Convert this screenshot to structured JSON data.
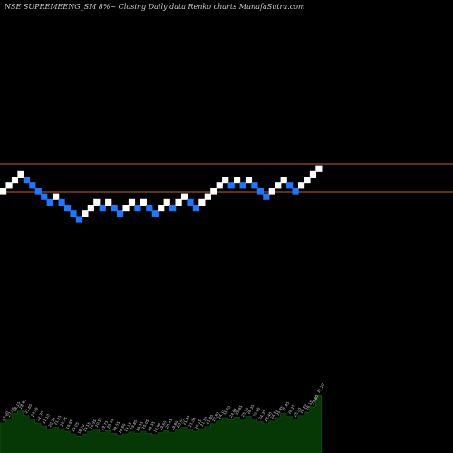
{
  "chart_data": {
    "type": "renko",
    "title": "NSE SUPREMEENG_SM 8%~   Closing Daily data  Renko  charts MunafaSutra.com",
    "colors": {
      "up": "#ffffff",
      "down": "#1e78ff",
      "background": "#000000",
      "ref_line": "#c0603a",
      "volume": "#063806"
    },
    "reference_lines": [
      {
        "name": "upper",
        "value": 1.0
      },
      {
        "name": "lower",
        "value": -4.0
      }
    ],
    "bricks": [
      {
        "direction": "up",
        "level": -2
      },
      {
        "direction": "up",
        "level": -1
      },
      {
        "direction": "up",
        "level": 0
      },
      {
        "direction": "up",
        "level": 1
      },
      {
        "direction": "down",
        "level": 0
      },
      {
        "direction": "down",
        "level": -1
      },
      {
        "direction": "down",
        "level": -2
      },
      {
        "direction": "down",
        "level": -3
      },
      {
        "direction": "down",
        "level": -4
      },
      {
        "direction": "up",
        "level": -3
      },
      {
        "direction": "down",
        "level": -4
      },
      {
        "direction": "down",
        "level": -5
      },
      {
        "direction": "down",
        "level": -6
      },
      {
        "direction": "down",
        "level": -7
      },
      {
        "direction": "up",
        "level": -6
      },
      {
        "direction": "up",
        "level": -5
      },
      {
        "direction": "up",
        "level": -4
      },
      {
        "direction": "down",
        "level": -5
      },
      {
        "direction": "up",
        "level": -4
      },
      {
        "direction": "down",
        "level": -5
      },
      {
        "direction": "down",
        "level": -6
      },
      {
        "direction": "up",
        "level": -5
      },
      {
        "direction": "up",
        "level": -4
      },
      {
        "direction": "down",
        "level": -5
      },
      {
        "direction": "up",
        "level": -4
      },
      {
        "direction": "down",
        "level": -5
      },
      {
        "direction": "down",
        "level": -6
      },
      {
        "direction": "up",
        "level": -5
      },
      {
        "direction": "up",
        "level": -4
      },
      {
        "direction": "down",
        "level": -5
      },
      {
        "direction": "up",
        "level": -4
      },
      {
        "direction": "up",
        "level": -3
      },
      {
        "direction": "down",
        "level": -4
      },
      {
        "direction": "down",
        "level": -5
      },
      {
        "direction": "up",
        "level": -4
      },
      {
        "direction": "up",
        "level": -3
      },
      {
        "direction": "up",
        "level": -2
      },
      {
        "direction": "up",
        "level": -1
      },
      {
        "direction": "up",
        "level": 0
      },
      {
        "direction": "down",
        "level": -1
      },
      {
        "direction": "up",
        "level": 0
      },
      {
        "direction": "down",
        "level": -1
      },
      {
        "direction": "up",
        "level": 0
      },
      {
        "direction": "down",
        "level": -1
      },
      {
        "direction": "down",
        "level": -2
      },
      {
        "direction": "down",
        "level": -3
      },
      {
        "direction": "up",
        "level": -2
      },
      {
        "direction": "up",
        "level": -1
      },
      {
        "direction": "up",
        "level": 0
      },
      {
        "direction": "down",
        "level": -1
      },
      {
        "direction": "down",
        "level": -2
      },
      {
        "direction": "up",
        "level": -1
      },
      {
        "direction": "up",
        "level": 0
      },
      {
        "direction": "up",
        "level": 1
      },
      {
        "direction": "up",
        "level": 2
      }
    ],
    "volume": [
      {
        "label": "27.00",
        "value": 0.44
      },
      {
        "label": "27.00",
        "value": 0.5
      },
      {
        "label": "28.15",
        "value": 0.58
      },
      {
        "label": "28.85",
        "value": 0.62
      },
      {
        "label": "25.65",
        "value": 0.55
      },
      {
        "label": "24.30",
        "value": 0.5
      },
      {
        "label": "22.70",
        "value": 0.44
      },
      {
        "label": "21.10",
        "value": 0.4
      },
      {
        "label": "20.30",
        "value": 0.35
      },
      {
        "label": "21.25",
        "value": 0.38
      },
      {
        "label": "20.75",
        "value": 0.36
      },
      {
        "label": "19.95",
        "value": 0.32
      },
      {
        "label": "19.05",
        "value": 0.28
      },
      {
        "label": "18.70",
        "value": 0.25
      },
      {
        "label": "19.55",
        "value": 0.28
      },
      {
        "label": "19.95",
        "value": 0.32
      },
      {
        "label": "20.55",
        "value": 0.35
      },
      {
        "label": "19.75",
        "value": 0.3
      },
      {
        "label": "20.45",
        "value": 0.33
      },
      {
        "label": "19.55",
        "value": 0.29
      },
      {
        "label": "18.60",
        "value": 0.26
      },
      {
        "label": "19.15",
        "value": 0.28
      },
      {
        "label": "19.85",
        "value": 0.31
      },
      {
        "label": "19.55",
        "value": 0.29
      },
      {
        "label": "20.05",
        "value": 0.32
      },
      {
        "label": "19.35",
        "value": 0.29
      },
      {
        "label": "18.95",
        "value": 0.27
      },
      {
        "label": "19.65",
        "value": 0.3
      },
      {
        "label": "20.45",
        "value": 0.33
      },
      {
        "label": "19.80",
        "value": 0.3
      },
      {
        "label": "20.55",
        "value": 0.34
      },
      {
        "label": "21.85",
        "value": 0.38
      },
      {
        "label": "21.00",
        "value": 0.35
      },
      {
        "label": "20.15",
        "value": 0.32
      },
      {
        "label": "21.10",
        "value": 0.36
      },
      {
        "label": "21.80",
        "value": 0.39
      },
      {
        "label": "22.80",
        "value": 0.43
      },
      {
        "label": "24.10",
        "value": 0.47
      },
      {
        "label": "25.70",
        "value": 0.52
      },
      {
        "label": "24.85",
        "value": 0.49
      },
      {
        "label": "25.95",
        "value": 0.53
      },
      {
        "label": "25.10",
        "value": 0.5
      },
      {
        "label": "26.35",
        "value": 0.54
      },
      {
        "label": "25.40",
        "value": 0.5
      },
      {
        "label": "24.35",
        "value": 0.46
      },
      {
        "label": "23.40",
        "value": 0.43
      },
      {
        "label": "24.55",
        "value": 0.47
      },
      {
        "label": "25.85",
        "value": 0.52
      },
      {
        "label": "27.45",
        "value": 0.58
      },
      {
        "label": "26.25",
        "value": 0.54
      },
      {
        "label": "25.35",
        "value": 0.5
      },
      {
        "label": "26.85",
        "value": 0.55
      },
      {
        "label": "28.15",
        "value": 0.6
      },
      {
        "label": "29.80",
        "value": 0.68
      },
      {
        "label": "31.20",
        "value": 0.85
      }
    ]
  }
}
